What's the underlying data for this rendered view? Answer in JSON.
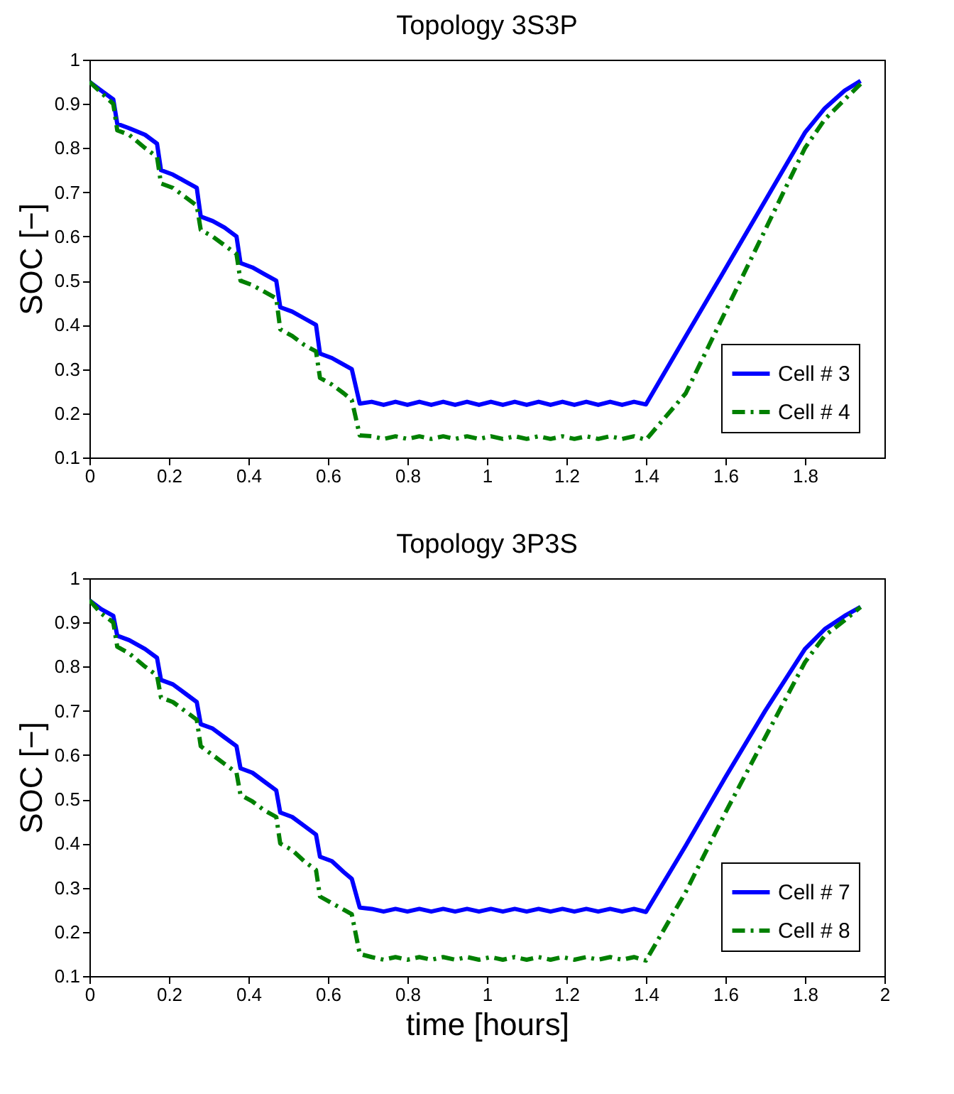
{
  "chart_data": [
    {
      "type": "line",
      "title": "Topology 3S3P",
      "ylabel": "SOC [−]",
      "xlim": [
        0,
        2
      ],
      "ylim": [
        0.1,
        1
      ],
      "xticks": [
        0,
        0.2,
        0.4,
        0.6,
        0.8,
        1,
        1.2,
        1.4,
        1.6,
        1.8
      ],
      "yticks": [
        0.1,
        0.2,
        0.3,
        0.4,
        0.5,
        0.6,
        0.7,
        0.8,
        0.9,
        1
      ],
      "grid": false,
      "legend": "bottom right",
      "series": [
        {
          "name": "Cell # 3",
          "color": "#0000ff",
          "line_style": "solid",
          "x": [
            0,
            0.03,
            0.06,
            0.07,
            0.1,
            0.14,
            0.17,
            0.18,
            0.21,
            0.24,
            0.27,
            0.28,
            0.31,
            0.34,
            0.37,
            0.38,
            0.41,
            0.44,
            0.47,
            0.48,
            0.51,
            0.54,
            0.57,
            0.58,
            0.61,
            0.64,
            0.66,
            0.68,
            0.71,
            0.74,
            0.77,
            0.8,
            0.83,
            0.86,
            0.89,
            0.92,
            0.95,
            0.98,
            1.01,
            1.04,
            1.07,
            1.1,
            1.13,
            1.16,
            1.19,
            1.22,
            1.25,
            1.28,
            1.31,
            1.34,
            1.37,
            1.4,
            1.5,
            1.6,
            1.7,
            1.8,
            1.85,
            1.9,
            1.94
          ],
          "values": [
            0.95,
            0.93,
            0.91,
            0.855,
            0.845,
            0.83,
            0.81,
            0.75,
            0.74,
            0.725,
            0.71,
            0.645,
            0.635,
            0.62,
            0.6,
            0.54,
            0.53,
            0.515,
            0.5,
            0.44,
            0.43,
            0.415,
            0.4,
            0.335,
            0.325,
            0.31,
            0.3,
            0.222,
            0.226,
            0.219,
            0.226,
            0.219,
            0.226,
            0.219,
            0.226,
            0.219,
            0.226,
            0.219,
            0.226,
            0.219,
            0.226,
            0.219,
            0.226,
            0.219,
            0.226,
            0.219,
            0.226,
            0.219,
            0.226,
            0.219,
            0.226,
            0.22,
            0.374,
            0.527,
            0.681,
            0.835,
            0.89,
            0.93,
            0.952
          ]
        },
        {
          "name": "Cell # 4",
          "color": "#008000",
          "line_style": "dashed",
          "x": [
            0,
            0.03,
            0.06,
            0.07,
            0.1,
            0.14,
            0.17,
            0.18,
            0.21,
            0.24,
            0.27,
            0.28,
            0.31,
            0.34,
            0.37,
            0.38,
            0.41,
            0.44,
            0.47,
            0.48,
            0.51,
            0.54,
            0.57,
            0.58,
            0.61,
            0.64,
            0.66,
            0.68,
            0.71,
            0.74,
            0.77,
            0.8,
            0.83,
            0.86,
            0.89,
            0.92,
            0.95,
            0.98,
            1.01,
            1.04,
            1.07,
            1.1,
            1.13,
            1.16,
            1.19,
            1.22,
            1.25,
            1.28,
            1.31,
            1.34,
            1.37,
            1.4,
            1.5,
            1.6,
            1.7,
            1.8,
            1.85,
            1.9,
            1.94
          ],
          "values": [
            0.95,
            0.925,
            0.9,
            0.84,
            0.83,
            0.8,
            0.78,
            0.72,
            0.71,
            0.69,
            0.67,
            0.615,
            0.6,
            0.58,
            0.56,
            0.5,
            0.49,
            0.475,
            0.46,
            0.39,
            0.375,
            0.355,
            0.34,
            0.28,
            0.265,
            0.245,
            0.23,
            0.15,
            0.148,
            0.142,
            0.148,
            0.142,
            0.148,
            0.142,
            0.148,
            0.142,
            0.148,
            0.142,
            0.148,
            0.142,
            0.148,
            0.142,
            0.148,
            0.142,
            0.148,
            0.142,
            0.148,
            0.142,
            0.148,
            0.142,
            0.148,
            0.14,
            0.245,
            0.43,
            0.615,
            0.8,
            0.865,
            0.91,
            0.945
          ]
        }
      ]
    },
    {
      "type": "line",
      "title": "Topology 3P3S",
      "xlabel": "time [hours]",
      "ylabel": "SOC [−]",
      "xlim": [
        0,
        2
      ],
      "ylim": [
        0.1,
        1
      ],
      "xticks": [
        0,
        0.2,
        0.4,
        0.6,
        0.8,
        1,
        1.2,
        1.4,
        1.6,
        1.8,
        2
      ],
      "yticks": [
        0.1,
        0.2,
        0.3,
        0.4,
        0.5,
        0.6,
        0.7,
        0.8,
        0.9,
        1
      ],
      "grid": false,
      "legend": "bottom right",
      "series": [
        {
          "name": "Cell # 7",
          "color": "#0000ff",
          "line_style": "solid",
          "x": [
            0,
            0.03,
            0.06,
            0.07,
            0.1,
            0.14,
            0.17,
            0.18,
            0.21,
            0.24,
            0.27,
            0.28,
            0.31,
            0.34,
            0.37,
            0.38,
            0.41,
            0.44,
            0.47,
            0.48,
            0.51,
            0.54,
            0.57,
            0.58,
            0.61,
            0.64,
            0.66,
            0.68,
            0.71,
            0.74,
            0.77,
            0.8,
            0.83,
            0.86,
            0.89,
            0.92,
            0.95,
            0.98,
            1.01,
            1.04,
            1.07,
            1.1,
            1.13,
            1.16,
            1.19,
            1.22,
            1.25,
            1.28,
            1.31,
            1.34,
            1.37,
            1.4,
            1.5,
            1.6,
            1.7,
            1.8,
            1.85,
            1.9,
            1.94
          ],
          "values": [
            0.95,
            0.93,
            0.915,
            0.87,
            0.86,
            0.84,
            0.82,
            0.77,
            0.76,
            0.74,
            0.72,
            0.67,
            0.66,
            0.64,
            0.62,
            0.57,
            0.56,
            0.54,
            0.52,
            0.47,
            0.46,
            0.44,
            0.42,
            0.37,
            0.36,
            0.335,
            0.32,
            0.255,
            0.252,
            0.246,
            0.252,
            0.246,
            0.252,
            0.246,
            0.252,
            0.246,
            0.252,
            0.246,
            0.252,
            0.246,
            0.252,
            0.246,
            0.252,
            0.246,
            0.252,
            0.246,
            0.252,
            0.246,
            0.252,
            0.246,
            0.252,
            0.245,
            0.395,
            0.55,
            0.7,
            0.84,
            0.885,
            0.915,
            0.935
          ]
        },
        {
          "name": "Cell # 8",
          "color": "#008000",
          "line_style": "dashed",
          "x": [
            0,
            0.03,
            0.06,
            0.07,
            0.1,
            0.14,
            0.17,
            0.18,
            0.21,
            0.24,
            0.27,
            0.28,
            0.31,
            0.34,
            0.37,
            0.38,
            0.41,
            0.44,
            0.47,
            0.48,
            0.51,
            0.54,
            0.57,
            0.58,
            0.61,
            0.64,
            0.66,
            0.68,
            0.71,
            0.74,
            0.77,
            0.8,
            0.83,
            0.86,
            0.89,
            0.92,
            0.95,
            0.98,
            1.01,
            1.04,
            1.07,
            1.1,
            1.13,
            1.16,
            1.19,
            1.22,
            1.25,
            1.28,
            1.31,
            1.34,
            1.37,
            1.4,
            1.5,
            1.6,
            1.7,
            1.8,
            1.85,
            1.9,
            1.94
          ],
          "values": [
            0.95,
            0.92,
            0.9,
            0.845,
            0.83,
            0.8,
            0.78,
            0.73,
            0.72,
            0.7,
            0.68,
            0.62,
            0.6,
            0.58,
            0.56,
            0.51,
            0.495,
            0.475,
            0.46,
            0.4,
            0.385,
            0.36,
            0.34,
            0.28,
            0.265,
            0.25,
            0.24,
            0.15,
            0.143,
            0.137,
            0.143,
            0.137,
            0.143,
            0.137,
            0.143,
            0.137,
            0.143,
            0.137,
            0.143,
            0.137,
            0.143,
            0.137,
            0.143,
            0.137,
            0.143,
            0.137,
            0.143,
            0.137,
            0.143,
            0.137,
            0.143,
            0.135,
            0.29,
            0.47,
            0.64,
            0.81,
            0.87,
            0.905,
            0.935
          ]
        }
      ]
    }
  ]
}
